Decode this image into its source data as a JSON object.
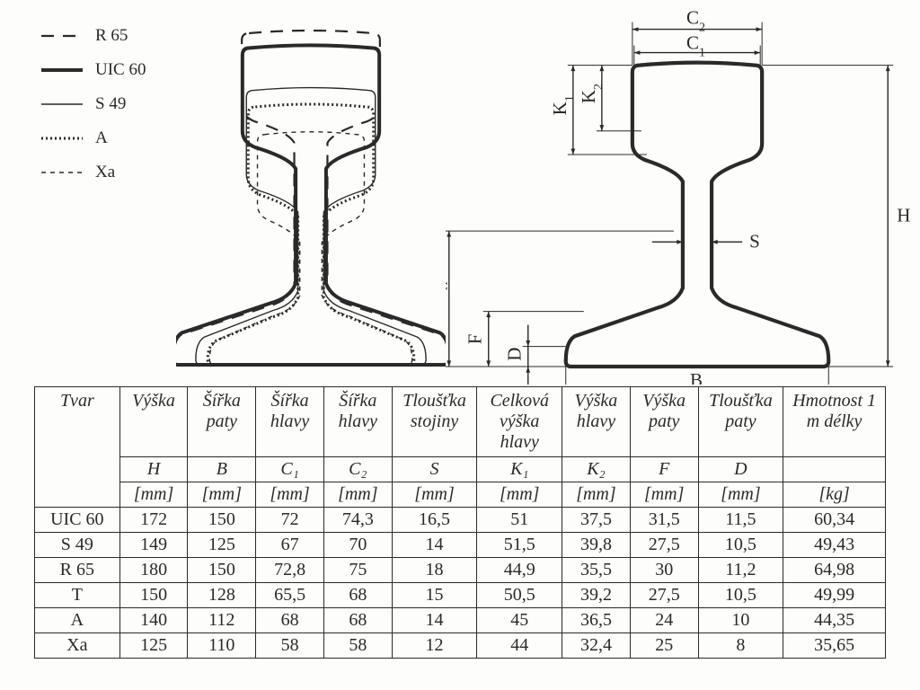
{
  "legend": [
    {
      "label": "R 65",
      "dash": "14,10",
      "width": 2.2,
      "color": "#2a2a2a"
    },
    {
      "label": "UIC 60",
      "dash": "",
      "width": 4.0,
      "color": "#2a2a2a"
    },
    {
      "label": "S 49",
      "dash": "",
      "width": 1.4,
      "color": "#2a2a2a"
    },
    {
      "label": "A",
      "dash": "2,3",
      "width": 3.0,
      "color": "#2a2a2a"
    },
    {
      "label": "Xa",
      "dash": "5,5",
      "width": 1.4,
      "color": "#2a2a2a"
    }
  ],
  "diagram": {
    "stroke": "#2a2a2a",
    "dim_labels": {
      "C2": "C",
      "C2s": "2",
      "C1": "C",
      "C1s": "1",
      "K1": "K",
      "K1s": "1",
      "K2": "K",
      "K2s": "2",
      "H": "H",
      "S": "S",
      "YH": "Y",
      "YHs": "H",
      "F": "F",
      "D": "D",
      "B": "B"
    }
  },
  "table": {
    "headers": [
      "Tvar",
      "Výška",
      "Šířka paty",
      "Šířka hlavy",
      "Šířka hlavy",
      "Tloušťka stojiny",
      "Celková výška hlavy",
      "Výška hlavy",
      "Výška paty",
      "Tloušťka paty",
      "Hmotnost 1 m délky"
    ],
    "symbols": [
      "",
      "H",
      "B",
      "C₁",
      "C₂",
      "S",
      "K₁",
      "K₂",
      "F",
      "D",
      ""
    ],
    "units": [
      "",
      "[mm]",
      "[mm]",
      "[mm]",
      "[mm]",
      "[mm]",
      "[mm]",
      "[mm]",
      "[mm]",
      "[mm]",
      "[kg]"
    ],
    "rows": [
      [
        "UIC 60",
        "172",
        "150",
        "72",
        "74,3",
        "16,5",
        "51",
        "37,5",
        "31,5",
        "11,5",
        "60,34"
      ],
      [
        "S 49",
        "149",
        "125",
        "67",
        "70",
        "14",
        "51,5",
        "39,8",
        "27,5",
        "10,5",
        "49,43"
      ],
      [
        "R 65",
        "180",
        "150",
        "72,8",
        "75",
        "18",
        "44,9",
        "35,5",
        "30",
        "11,2",
        "64,98"
      ],
      [
        "T",
        "150",
        "128",
        "65,5",
        "68",
        "15",
        "50,5",
        "39,2",
        "27,5",
        "10,5",
        "49,99"
      ],
      [
        "A",
        "140",
        "112",
        "68",
        "68",
        "14",
        "45",
        "36,5",
        "24",
        "10",
        "44,35"
      ],
      [
        "Xa",
        "125",
        "110",
        "58",
        "58",
        "12",
        "44",
        "32,4",
        "25",
        "8",
        "35,65"
      ]
    ],
    "col_widths_pct": [
      10,
      8,
      8,
      8,
      8,
      10,
      10,
      8,
      8,
      10,
      12
    ]
  }
}
